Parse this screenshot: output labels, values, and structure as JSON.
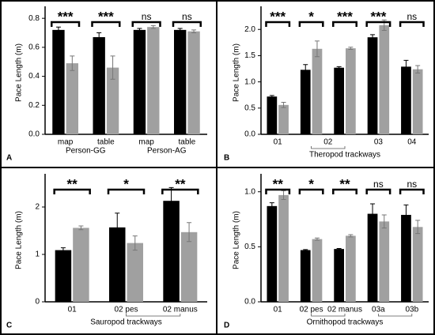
{
  "chart_data": [
    {
      "type": "bar",
      "panel_label": "A",
      "y_label": "Pace Length (m)",
      "categories": [
        "map",
        "table",
        "map",
        "table"
      ],
      "groups": [
        {
          "label": "Person-GG",
          "from": 0,
          "to": 1
        },
        {
          "label": "Person-AG",
          "from": 2,
          "to": 3
        }
      ],
      "series": [
        {
          "color": "#000000",
          "values": [
            0.72,
            0.67,
            0.72,
            0.72
          ],
          "errors": [
            0.02,
            0.03,
            0.01,
            0.01
          ]
        },
        {
          "color": "#a0a0a0",
          "values": [
            0.49,
            0.46,
            0.74,
            0.71
          ],
          "errors": [
            0.05,
            0.08,
            0.01,
            0.01
          ]
        }
      ],
      "significance": [
        "***",
        "***",
        "ns",
        "ns"
      ],
      "ylim": [
        0,
        0.85
      ],
      "yticks": [
        {
          "value": 0,
          "label": "0.0"
        },
        {
          "value": 0.2,
          "label": "0.2"
        },
        {
          "value": 0.4,
          "label": "0.4"
        },
        {
          "value": 0.6,
          "label": "0.6"
        },
        {
          "value": 0.8,
          "label": "0.8"
        }
      ]
    },
    {
      "type": "bar",
      "panel_label": "B",
      "y_label": "Pace Length (m)",
      "x_label": "Theropod trackways",
      "categories": [
        "01",
        null,
        null,
        "03",
        "04"
      ],
      "groups": [
        {
          "label": "02",
          "from": 1,
          "to": 2
        }
      ],
      "series": [
        {
          "color": "#000000",
          "values": [
            0.72,
            1.23,
            1.27,
            1.85,
            1.29
          ],
          "errors": [
            0.02,
            0.1,
            0.02,
            0.05,
            0.12
          ]
        },
        {
          "color": "#a0a0a0",
          "values": [
            0.56,
            1.63,
            1.64,
            2.08,
            1.24
          ],
          "errors": [
            0.05,
            0.15,
            0.02,
            0.1,
            0.07
          ]
        }
      ],
      "significance": [
        "***",
        "*",
        "***",
        "***",
        "ns"
      ],
      "ylim": [
        0,
        2.35
      ],
      "yticks": [
        {
          "value": 0,
          "label": "0.0"
        },
        {
          "value": 0.5,
          "label": "0.5"
        },
        {
          "value": 1,
          "label": "1.0"
        },
        {
          "value": 1.5,
          "label": "1.5"
        },
        {
          "value": 2,
          "label": "2.0"
        }
      ]
    },
    {
      "type": "bar",
      "panel_label": "C",
      "y_label": "Pace Length (m)",
      "x_label": "Sauropod trackways",
      "categories": [
        "01",
        "02 pes",
        "02 manus"
      ],
      "series": [
        {
          "color": "#000000",
          "values": [
            1.09,
            1.57,
            2.13
          ],
          "errors": [
            0.05,
            0.3,
            0.28
          ]
        },
        {
          "color": "#a0a0a0",
          "values": [
            1.56,
            1.24,
            1.47
          ],
          "errors": [
            0.04,
            0.15,
            0.2
          ]
        }
      ],
      "significance": [
        "**",
        "*",
        "**"
      ],
      "ylim": [
        0,
        2.6
      ],
      "yticks": [
        0,
        1,
        2
      ]
    },
    {
      "type": "bar",
      "panel_label": "D",
      "y_label": "Pace Length (m)",
      "x_label": "Ornithopod trackways",
      "categories": [
        "01",
        "02 pes",
        "02 manus",
        "03a",
        "03b"
      ],
      "series": [
        {
          "color": "#000000",
          "values": [
            0.87,
            0.47,
            0.48,
            0.8,
            0.79
          ],
          "errors": [
            0.03,
            0.005,
            0.005,
            0.09,
            0.09
          ]
        },
        {
          "color": "#a0a0a0",
          "values": [
            0.97,
            0.57,
            0.6,
            0.73,
            0.68
          ],
          "errors": [
            0.04,
            0.01,
            0.01,
            0.06,
            0.06
          ]
        }
      ],
      "significance": [
        "**",
        "*",
        "**",
        "ns",
        "ns"
      ],
      "ylim": [
        0,
        1.12
      ],
      "yticks": [
        {
          "value": 0,
          "label": "0.0"
        },
        {
          "value": 0.5,
          "label": "0.5"
        },
        {
          "value": 1,
          "label": "1.0"
        }
      ]
    }
  ]
}
